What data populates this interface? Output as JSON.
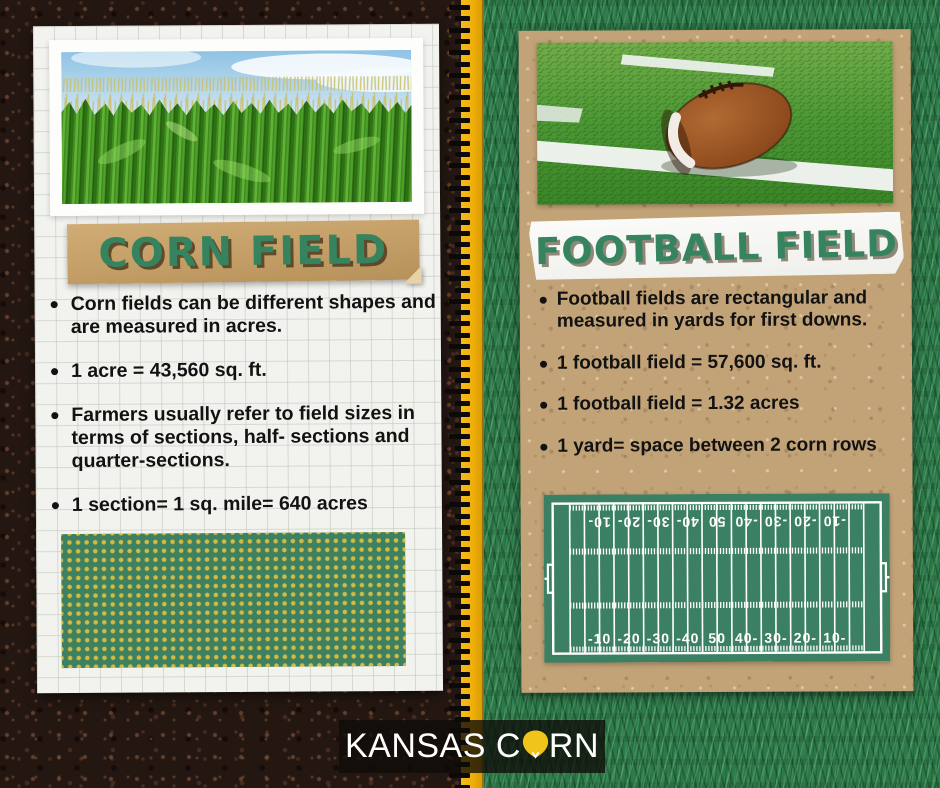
{
  "left_panel": {
    "title": "CORN FIELD",
    "photo": "corn-field-photo",
    "bullets": [
      "Corn fields can be different shapes and are measured in acres.",
      "1 acre = 43,560 sq. ft.",
      "Farmers usually refer to field sizes in terms of sections, half- sections and quarter-sections.",
      "1 section= 1 sq. mile= 640 acres"
    ]
  },
  "right_panel": {
    "title": "FOOTBALL FIELD",
    "photo": "football-photo",
    "bullets": [
      "Football fields are rectangular and measured in yards for first downs.",
      "1 football field = 57,600 sq. ft.",
      "1 football field = 1.32 acres",
      "1 yard= space between 2 corn rows"
    ],
    "field_diagram": {
      "yard_numbers": [
        "-10",
        "-20",
        "-30",
        "-40",
        "50",
        "40-",
        "30-",
        "20-",
        "10-"
      ]
    }
  },
  "footer": {
    "brand_full": "KANSAS CORN",
    "brand_prefix": "KANSAS C",
    "brand_suffix": "RN"
  },
  "colors": {
    "title_green": "#35845f",
    "tape_tan": "#c8a56c",
    "kraft_card": "#c2a277",
    "paper": "#f2f2ee",
    "ruler_yellow": "#efae08",
    "field_green": "#3c8063",
    "corn_dot_yellow": "#d4ba45",
    "logo_kernel_yellow": "#f0c419"
  }
}
